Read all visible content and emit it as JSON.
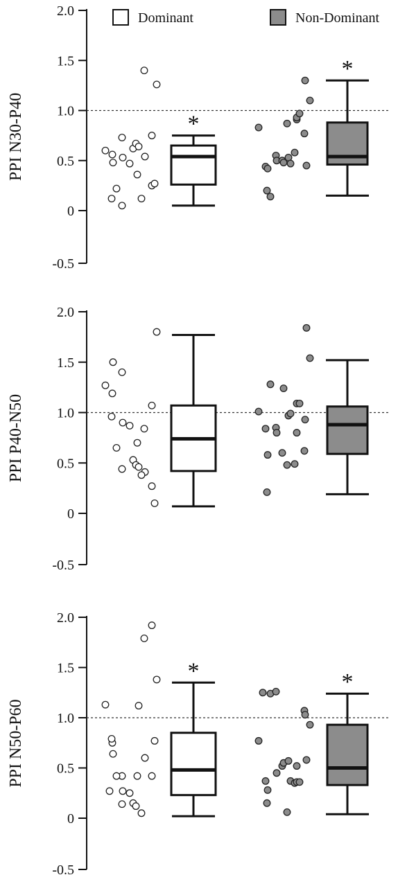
{
  "legend": {
    "position": "top",
    "items": [
      {
        "label": "Dominant",
        "color": "#ffffff"
      },
      {
        "label": "Non-Dominant",
        "color": "#8c8c8c"
      }
    ]
  },
  "chart_data": [
    {
      "type": "box",
      "ylabel": "PPI N30-P40",
      "ylim": [
        -0.5,
        2.0
      ],
      "yticks": [
        "2.0",
        "1.5",
        "1.0",
        "0.5",
        "0",
        "-0.5"
      ],
      "reference_line": 1.0,
      "series": [
        {
          "name": "Dominant",
          "color": "#ffffff",
          "points": [
            0.6,
            0.56,
            0.48,
            0.73,
            0.53,
            0.47,
            0.62,
            0.67,
            0.64,
            0.54,
            0.36,
            0.22,
            0.12,
            0.05,
            0.12,
            0.25,
            0.27,
            0.75,
            1.4,
            1.26
          ],
          "box": {
            "min": 0.05,
            "q1": 0.26,
            "median": 0.54,
            "q3": 0.65,
            "max": 0.75
          },
          "marker": "*"
        },
        {
          "name": "Non-Dominant",
          "color": "#8c8c8c",
          "points": [
            0.83,
            0.44,
            0.42,
            0.2,
            0.14,
            0.55,
            0.5,
            0.5,
            0.48,
            0.53,
            0.47,
            0.58,
            0.87,
            0.91,
            0.93,
            0.97,
            0.77,
            1.3,
            1.1,
            0.45
          ],
          "box": {
            "min": 0.15,
            "q1": 0.46,
            "median": 0.54,
            "q3": 0.88,
            "max": 1.3
          },
          "marker": "*"
        }
      ]
    },
    {
      "type": "box",
      "ylabel": "PPI P40-N50",
      "ylim": [
        -0.5,
        2.0
      ],
      "yticks": [
        "2.0",
        "1.5",
        "1.0",
        "0.5",
        "0",
        "-0.5"
      ],
      "reference_line": 1.0,
      "series": [
        {
          "name": "Dominant",
          "color": "#ffffff",
          "points": [
            1.27,
            1.19,
            1.5,
            1.4,
            0.9,
            0.87,
            0.53,
            0.48,
            0.46,
            0.41,
            0.7,
            0.65,
            0.96,
            0.44,
            0.38,
            0.27,
            0.1,
            1.07,
            0.84,
            1.8
          ],
          "box": {
            "min": 0.07,
            "q1": 0.42,
            "median": 0.74,
            "q3": 1.07,
            "max": 1.77
          },
          "marker": ""
        },
        {
          "name": "Non-Dominant",
          "color": "#8c8c8c",
          "points": [
            1.01,
            0.84,
            0.58,
            0.21,
            1.28,
            0.85,
            0.8,
            0.6,
            1.24,
            0.97,
            0.99,
            0.49,
            0.48,
            1.09,
            0.8,
            1.09,
            0.62,
            0.93,
            1.54,
            1.84
          ],
          "box": {
            "min": 0.19,
            "q1": 0.59,
            "median": 0.88,
            "q3": 1.06,
            "max": 1.52
          },
          "marker": ""
        }
      ]
    },
    {
      "type": "box",
      "ylabel": "PPI N50-P60",
      "ylim": [
        -0.5,
        2.0
      ],
      "yticks": [
        "2.0",
        "1.5",
        "1.0",
        "0.5",
        "0",
        "-0.5"
      ],
      "reference_line": 1.0,
      "series": [
        {
          "name": "Dominant",
          "color": "#ffffff",
          "points": [
            1.13,
            0.75,
            0.64,
            0.42,
            0.27,
            0.25,
            0.15,
            0.12,
            1.12,
            0.6,
            0.42,
            0.42,
            0.79,
            0.14,
            0.05,
            0.42,
            0.77,
            1.92,
            1.79,
            1.38,
            0.27
          ],
          "box": {
            "min": 0.02,
            "q1": 0.23,
            "median": 0.48,
            "q3": 0.85,
            "max": 1.35
          },
          "marker": "*"
        },
        {
          "name": "Non-Dominant",
          "color": "#8c8c8c",
          "points": [
            0.77,
            0.37,
            0.28,
            0.15,
            1.24,
            1.26,
            0.45,
            0.52,
            0.55,
            0.57,
            0.37,
            0.35,
            0.06,
            0.36,
            0.52,
            0.36,
            1.07,
            1.03,
            0.93,
            0.58,
            1.25
          ],
          "box": {
            "min": 0.04,
            "q1": 0.33,
            "median": 0.5,
            "q3": 0.93,
            "max": 1.24
          },
          "marker": "*"
        }
      ]
    }
  ]
}
